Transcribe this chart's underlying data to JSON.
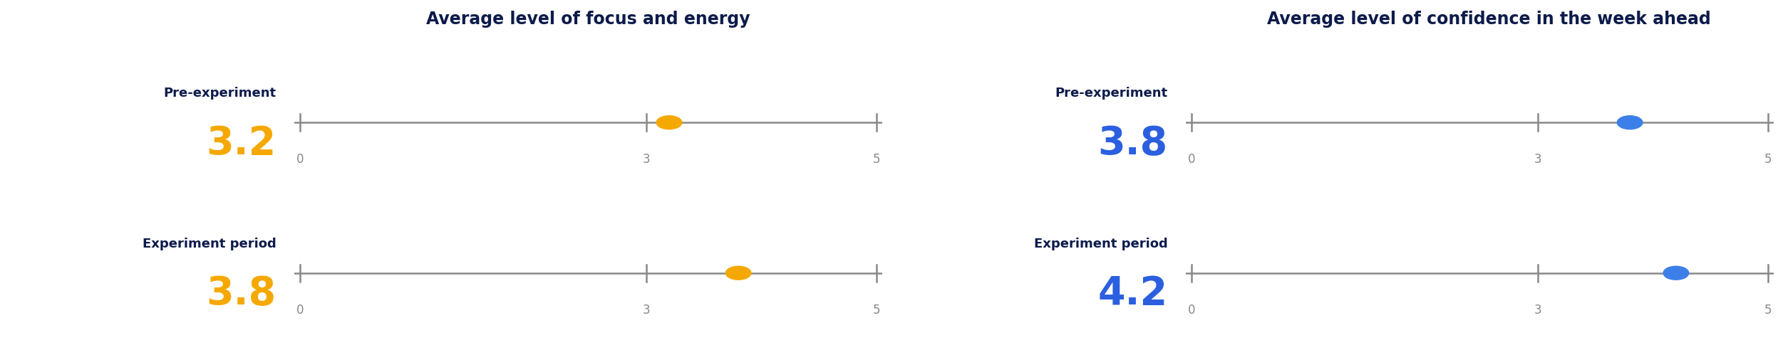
{
  "chart1_title": "Average level of focus and energy",
  "chart2_title": "Average level of confidence in the week ahead",
  "chart1_rows": [
    {
      "label": "Pre-experiment",
      "value": 3.2,
      "display": "3.2"
    },
    {
      "label": "Experiment period",
      "value": 3.8,
      "display": "3.8"
    }
  ],
  "chart2_rows": [
    {
      "label": "Pre-experiment",
      "value": 3.8,
      "display": "3.8"
    },
    {
      "label": "Experiment period",
      "value": 4.2,
      "display": "4.2"
    }
  ],
  "xmin": 0,
  "xmax": 5,
  "xticks": [
    0,
    3,
    5
  ],
  "chart1_dot_color": "#F5A800",
  "chart2_dot_color": "#3D7FE8",
  "chart1_value_color": "#F5A800",
  "chart2_value_color": "#2B5FE0",
  "label_color": "#0D1B4B",
  "title_color": "#0D1B4B",
  "tick_color": "#888888",
  "line_color": "#888888",
  "bg_color": "#FFFFFF",
  "title_fontsize": 17,
  "label_fontsize": 13,
  "value_fontsize": 40,
  "tick_fontsize": 12
}
